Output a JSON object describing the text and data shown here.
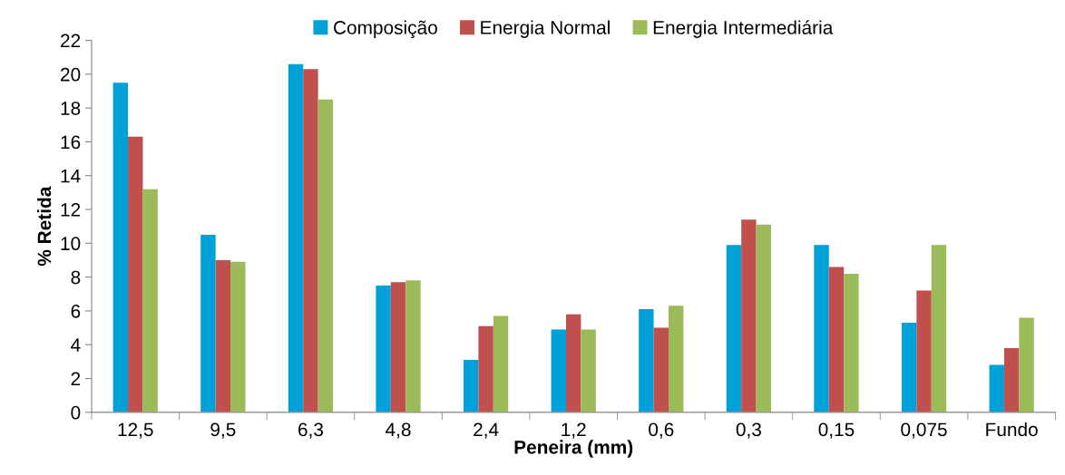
{
  "chart_data": {
    "type": "bar",
    "xlabel": "Peneira (mm)",
    "ylabel": "% Retida",
    "categories": [
      "12,5",
      "9,5",
      "6,3",
      "4,8",
      "2,4",
      "1,2",
      "0,6",
      "0,3",
      "0,15",
      "0,075",
      "Fundo"
    ],
    "series": [
      {
        "name": "Composição",
        "color": "#00a0d8",
        "values": [
          19.5,
          10.5,
          20.6,
          7.5,
          3.1,
          4.9,
          6.1,
          9.9,
          9.9,
          5.3,
          2.8
        ]
      },
      {
        "name": "Energia Normal",
        "color": "#c0504d",
        "values": [
          16.3,
          9.0,
          20.3,
          7.7,
          5.1,
          5.8,
          5.0,
          11.4,
          8.6,
          7.2,
          3.8
        ]
      },
      {
        "name": "Energia Intermediária",
        "color": "#9bbb59",
        "values": [
          13.2,
          8.9,
          18.5,
          7.8,
          5.7,
          4.9,
          6.3,
          11.1,
          8.2,
          9.9,
          5.6
        ]
      }
    ],
    "ylim": [
      0,
      22
    ],
    "yticks": [
      0,
      2,
      4,
      6,
      8,
      10,
      12,
      14,
      16,
      18,
      20,
      22
    ],
    "grid": false,
    "legend": "top"
  }
}
